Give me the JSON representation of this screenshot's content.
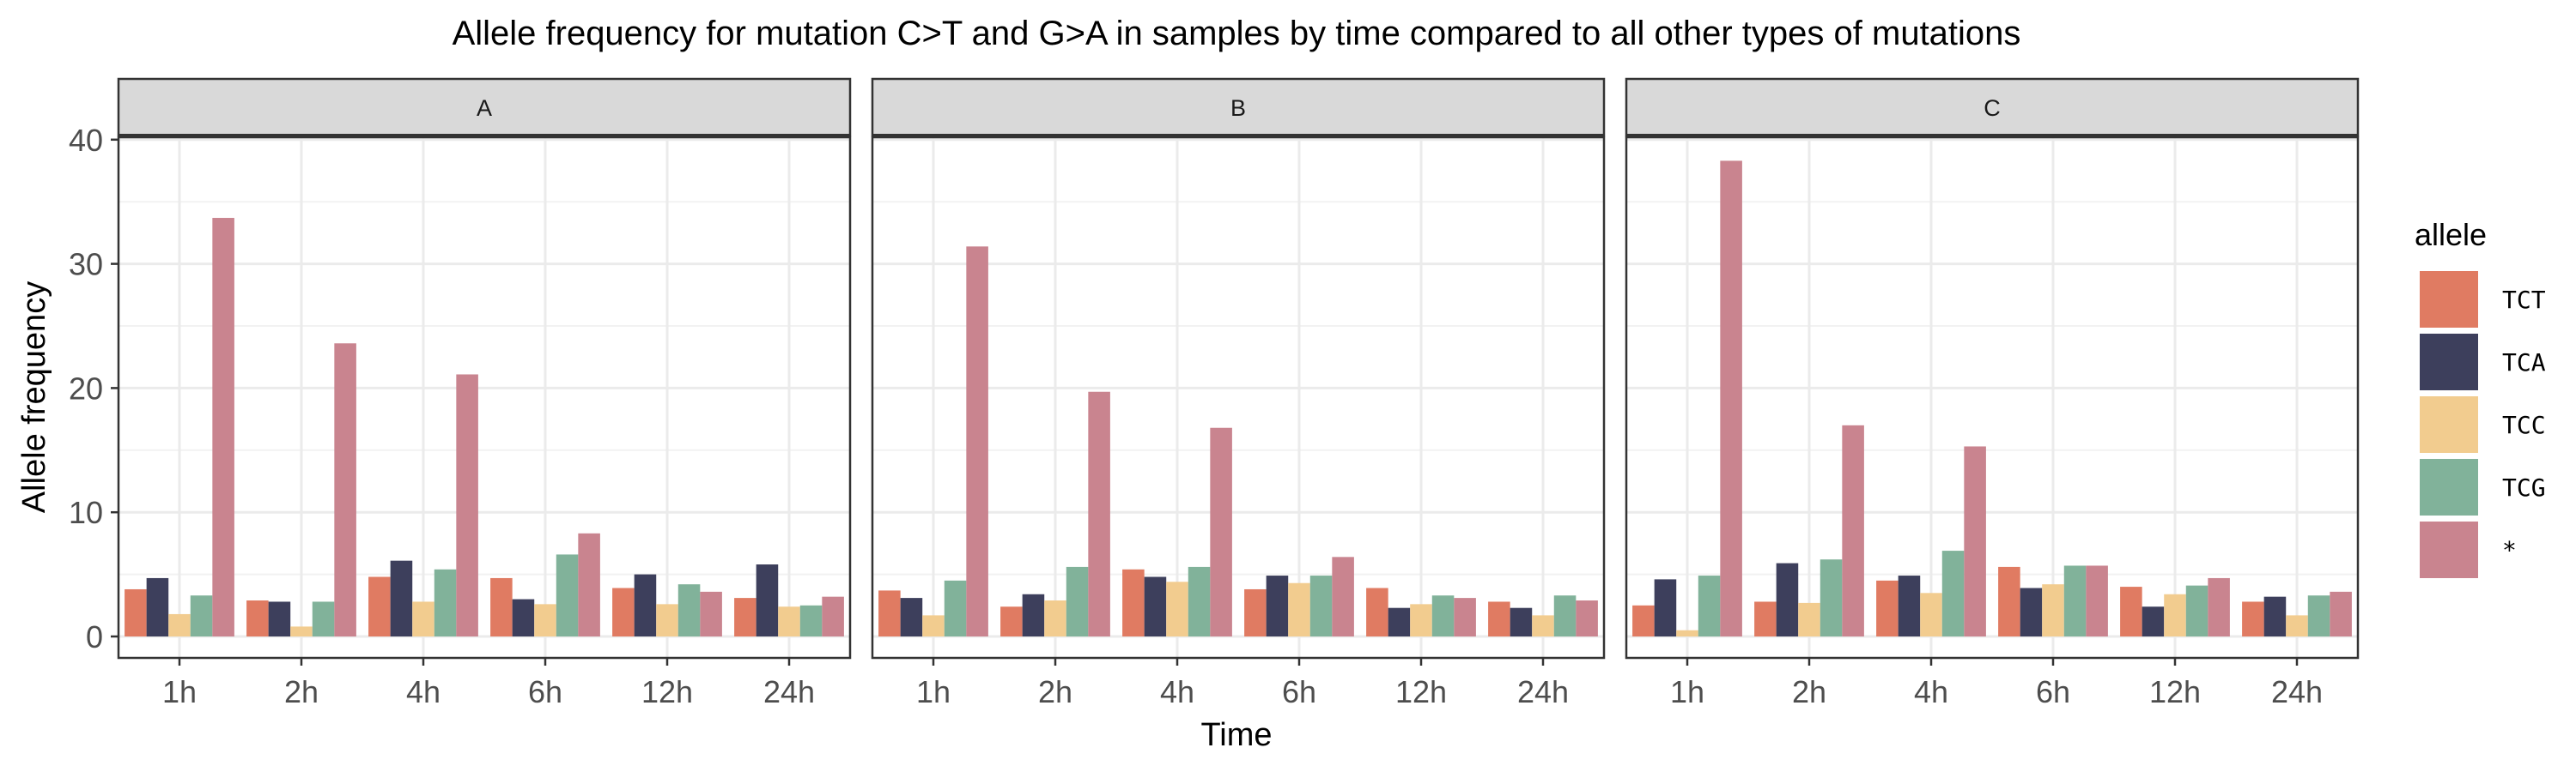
{
  "chart_data": {
    "type": "bar",
    "title": "Allele frequency for mutation C>T and G>A in samples by time compared to all other types of mutations",
    "xlabel": "Time",
    "ylabel": "Allele frequency",
    "ylim": [
      0,
      42
    ],
    "yticks": [
      "0",
      "10",
      "20",
      "30",
      "40"
    ],
    "grid": true,
    "legend_position": "right",
    "legend_title": "allele",
    "categories": [
      "1h",
      "2h",
      "4h",
      "6h",
      "12h",
      "24h"
    ],
    "series_names": [
      "TCT",
      "TCA",
      "TCC",
      "TCG",
      "*"
    ],
    "colors": [
      "#E07B62",
      "#3D3F5C",
      "#F2CC8F",
      "#81B29A",
      "#C9848F"
    ],
    "facets": [
      {
        "label": "A",
        "values": [
          [
            3.8,
            4.7,
            1.8,
            3.3,
            33.7
          ],
          [
            2.9,
            2.8,
            0.8,
            2.8,
            23.6
          ],
          [
            4.8,
            6.1,
            2.8,
            5.4,
            21.1
          ],
          [
            4.7,
            3.0,
            2.6,
            6.6,
            8.3
          ],
          [
            3.9,
            5.0,
            2.6,
            4.2,
            3.6
          ],
          [
            3.1,
            5.8,
            2.4,
            2.5,
            3.2
          ]
        ]
      },
      {
        "label": "B",
        "values": [
          [
            3.7,
            3.1,
            1.7,
            4.5,
            31.4
          ],
          [
            2.4,
            3.4,
            2.9,
            5.6,
            19.7
          ],
          [
            5.4,
            4.8,
            4.4,
            5.6,
            16.8
          ],
          [
            3.8,
            4.9,
            4.3,
            4.9,
            6.4
          ],
          [
            3.9,
            2.3,
            2.6,
            3.3,
            3.1
          ],
          [
            2.8,
            2.3,
            1.7,
            3.3,
            2.9
          ]
        ]
      },
      {
        "label": "C",
        "values": [
          [
            2.5,
            4.6,
            0.5,
            4.9,
            38.3
          ],
          [
            2.8,
            5.9,
            2.7,
            6.2,
            17.0
          ],
          [
            4.5,
            4.9,
            3.5,
            6.9,
            15.3
          ],
          [
            5.6,
            3.9,
            4.2,
            5.7,
            5.7
          ],
          [
            4.0,
            2.4,
            3.4,
            4.1,
            4.7
          ],
          [
            2.8,
            3.2,
            1.7,
            3.3,
            3.6
          ]
        ]
      }
    ]
  }
}
